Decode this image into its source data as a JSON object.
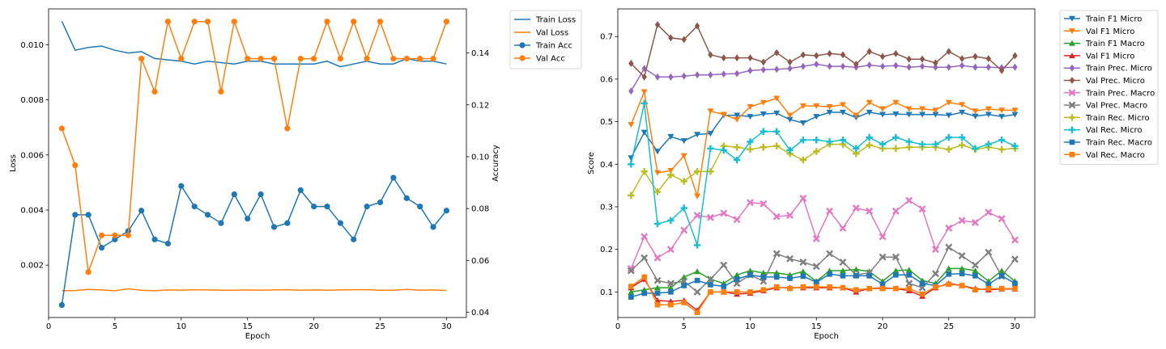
{
  "chart_data": [
    {
      "type": "line",
      "xlabel": "Epoch",
      "ylabel_left": "Loss",
      "ylabel_right": "Accuracy",
      "x": [
        1,
        2,
        3,
        4,
        5,
        6,
        7,
        8,
        9,
        10,
        11,
        12,
        13,
        14,
        15,
        16,
        17,
        18,
        19,
        20,
        21,
        22,
        23,
        24,
        25,
        26,
        27,
        28,
        29,
        30
      ],
      "xlim": [
        0,
        31.5
      ],
      "ylim_left": [
        0.0001,
        0.0113
      ],
      "ylim_right": [
        0.038,
        0.157
      ],
      "xticks": [
        "0",
        "5",
        "10",
        "15",
        "20",
        "25",
        "30"
      ],
      "yticks_left": [
        "0.002",
        "0.004",
        "0.006",
        "0.008",
        "0.010"
      ],
      "yticks_right": [
        "0.04",
        "0.06",
        "0.08",
        "0.10",
        "0.12",
        "0.14"
      ],
      "legend_position": "outside-top-right",
      "series": [
        {
          "name": "Train Loss",
          "axis": "left",
          "color": "#1f77b4",
          "marker": "none",
          "values": [
            0.01085,
            0.0098,
            0.0099,
            0.00995,
            0.0098,
            0.0097,
            0.00975,
            0.0095,
            0.00945,
            0.0094,
            0.0093,
            0.0094,
            0.00935,
            0.0093,
            0.0094,
            0.0094,
            0.0093,
            0.0093,
            0.0093,
            0.0093,
            0.0094,
            0.0092,
            0.0093,
            0.0094,
            0.0093,
            0.0093,
            0.0095,
            0.0094,
            0.0094,
            0.0093
          ]
        },
        {
          "name": "Val Loss",
          "axis": "left",
          "color": "#ff7f0e",
          "marker": "none",
          "values": [
            0.00107,
            0.00108,
            0.00112,
            0.0011,
            0.00107,
            0.00114,
            0.00109,
            0.00107,
            0.0011,
            0.00109,
            0.00111,
            0.0011,
            0.00109,
            0.00109,
            0.0011,
            0.00109,
            0.0011,
            0.00111,
            0.00109,
            0.0011,
            0.00109,
            0.0011,
            0.00111,
            0.00111,
            0.00109,
            0.00109,
            0.00112,
            0.00109,
            0.0011,
            0.00108
          ]
        },
        {
          "name": "Train Acc",
          "axis": "right",
          "color": "#1f77b4",
          "marker": "circle",
          "values": [
            0.0428,
            0.0776,
            0.0776,
            0.0649,
            0.0681,
            0.0713,
            0.0792,
            0.0681,
            0.0665,
            0.0887,
            0.0808,
            0.0776,
            0.0744,
            0.0855,
            0.0761,
            0.0855,
            0.0729,
            0.0744,
            0.0871,
            0.0808,
            0.0808,
            0.0744,
            0.0681,
            0.0808,
            0.0824,
            0.0919,
            0.084,
            0.0808,
            0.0729,
            0.0792
          ]
        },
        {
          "name": "Val Acc",
          "axis": "right",
          "color": "#ff7f0e",
          "marker": "circle",
          "values": [
            0.1109,
            0.0967,
            0.0555,
            0.0697,
            0.0697,
            0.0697,
            0.1378,
            0.1251,
            0.1521,
            0.1378,
            0.1521,
            0.1521,
            0.1251,
            0.1521,
            0.1378,
            0.1378,
            0.1378,
            0.1109,
            0.1378,
            0.1378,
            0.1521,
            0.1378,
            0.1521,
            0.1378,
            0.1521,
            0.1378,
            0.1378,
            0.1378,
            0.1378,
            0.1521
          ]
        }
      ]
    },
    {
      "type": "line",
      "xlabel": "Epoch",
      "ylabel": "Score",
      "x": [
        1,
        2,
        3,
        4,
        5,
        6,
        7,
        8,
        9,
        10,
        11,
        12,
        13,
        14,
        15,
        16,
        17,
        18,
        19,
        20,
        21,
        22,
        23,
        24,
        25,
        26,
        27,
        28,
        29,
        30
      ],
      "xlim": [
        0,
        31.5
      ],
      "ylim": [
        0.04,
        0.765
      ],
      "xticks": [
        "0",
        "5",
        "10",
        "15",
        "20",
        "25",
        "30"
      ],
      "yticks": [
        "0.1",
        "0.2",
        "0.3",
        "0.4",
        "0.5",
        "0.6",
        "0.7"
      ],
      "legend_position": "outside-top-right",
      "series": [
        {
          "name": "Train F1 Micro",
          "color": "#1f77b4",
          "marker": "tri-down",
          "values": [
            0.415,
            0.475,
            0.43,
            0.465,
            0.455,
            0.47,
            0.472,
            0.515,
            0.515,
            0.512,
            0.518,
            0.52,
            0.505,
            0.497,
            0.512,
            0.522,
            0.522,
            0.51,
            0.522,
            0.517,
            0.518,
            0.517,
            0.517,
            0.517,
            0.515,
            0.522,
            0.513,
            0.517,
            0.512,
            0.517
          ]
        },
        {
          "name": "Val F1 Micro",
          "color": "#ff7f0e",
          "marker": "tri-down",
          "values": [
            0.493,
            0.57,
            0.38,
            0.385,
            0.42,
            0.325,
            0.525,
            0.517,
            0.505,
            0.535,
            0.545,
            0.555,
            0.515,
            0.537,
            0.537,
            0.535,
            0.54,
            0.515,
            0.545,
            0.53,
            0.545,
            0.53,
            0.53,
            0.527,
            0.545,
            0.54,
            0.525,
            0.53,
            0.527,
            0.527
          ]
        },
        {
          "name": "Train F1 Macro",
          "color": "#2ca02c",
          "marker": "tri-up",
          "values": [
            0.1,
            0.105,
            0.11,
            0.11,
            0.135,
            0.148,
            0.13,
            0.12,
            0.14,
            0.15,
            0.145,
            0.145,
            0.14,
            0.148,
            0.125,
            0.15,
            0.15,
            0.153,
            0.148,
            0.125,
            0.15,
            0.152,
            0.127,
            0.12,
            0.155,
            0.155,
            0.15,
            0.125,
            0.15,
            0.125
          ]
        },
        {
          "name": "Val F1 Micro",
          "color": "#d62728",
          "marker": "tri-up",
          "values": [
            0.11,
            0.13,
            0.08,
            0.078,
            0.08,
            0.057,
            0.1,
            0.1,
            0.095,
            0.097,
            0.103,
            0.11,
            0.11,
            0.11,
            0.11,
            0.11,
            0.11,
            0.1,
            0.108,
            0.11,
            0.108,
            0.103,
            0.09,
            0.11,
            0.12,
            0.115,
            0.108,
            0.105,
            0.107,
            0.107
          ]
        },
        {
          "name": "Train Prec. Micro",
          "color": "#9467bd",
          "marker": "diamond",
          "values": [
            0.572,
            0.625,
            0.605,
            0.605,
            0.607,
            0.61,
            0.61,
            0.612,
            0.613,
            0.62,
            0.622,
            0.623,
            0.625,
            0.63,
            0.635,
            0.63,
            0.63,
            0.628,
            0.633,
            0.63,
            0.632,
            0.628,
            0.63,
            0.628,
            0.628,
            0.632,
            0.628,
            0.628,
            0.627,
            0.628
          ]
        },
        {
          "name": "Val Prec. Micro",
          "color": "#8c564b",
          "marker": "diamond",
          "values": [
            0.637,
            0.605,
            0.728,
            0.697,
            0.693,
            0.725,
            0.657,
            0.65,
            0.65,
            0.65,
            0.64,
            0.662,
            0.64,
            0.657,
            0.655,
            0.66,
            0.657,
            0.635,
            0.665,
            0.653,
            0.66,
            0.647,
            0.647,
            0.638,
            0.665,
            0.648,
            0.653,
            0.648,
            0.62,
            0.655
          ]
        },
        {
          "name": "Train Prec. Macro",
          "color": "#e377c2",
          "marker": "x",
          "values": [
            0.155,
            0.23,
            0.18,
            0.2,
            0.245,
            0.28,
            0.275,
            0.285,
            0.27,
            0.31,
            0.307,
            0.277,
            0.28,
            0.32,
            0.225,
            0.29,
            0.25,
            0.297,
            0.29,
            0.23,
            0.29,
            0.315,
            0.295,
            0.2,
            0.25,
            0.268,
            0.263,
            0.287,
            0.272,
            0.222
          ]
        },
        {
          "name": "Val Prec. Macro",
          "color": "#7f7f7f",
          "marker": "x",
          "values": [
            0.15,
            0.18,
            0.127,
            0.12,
            0.125,
            0.1,
            0.13,
            0.163,
            0.12,
            0.14,
            0.125,
            0.19,
            0.178,
            0.17,
            0.16,
            0.19,
            0.17,
            0.14,
            0.145,
            0.182,
            0.182,
            0.12,
            0.11,
            0.143,
            0.205,
            0.185,
            0.163,
            0.193,
            0.137,
            0.177
          ]
        },
        {
          "name": "Train Rec. Micro",
          "color": "#bcbd22",
          "marker": "plus",
          "values": [
            0.327,
            0.383,
            0.335,
            0.375,
            0.36,
            0.383,
            0.383,
            0.443,
            0.44,
            0.435,
            0.44,
            0.443,
            0.425,
            0.41,
            0.43,
            0.447,
            0.447,
            0.425,
            0.445,
            0.437,
            0.437,
            0.44,
            0.44,
            0.44,
            0.435,
            0.445,
            0.435,
            0.44,
            0.435,
            0.437
          ]
        },
        {
          "name": "Val Rec. Micro",
          "color": "#17becf",
          "marker": "plus",
          "values": [
            0.4,
            0.543,
            0.26,
            0.268,
            0.297,
            0.21,
            0.437,
            0.433,
            0.41,
            0.453,
            0.477,
            0.477,
            0.433,
            0.457,
            0.457,
            0.453,
            0.457,
            0.437,
            0.463,
            0.447,
            0.463,
            0.453,
            0.447,
            0.447,
            0.463,
            0.463,
            0.437,
            0.447,
            0.457,
            0.443
          ]
        },
        {
          "name": "Train Rec. Macro",
          "color": "#1f77b4",
          "marker": "square",
          "values": [
            0.088,
            0.097,
            0.097,
            0.1,
            0.115,
            0.127,
            0.117,
            0.113,
            0.13,
            0.14,
            0.135,
            0.135,
            0.132,
            0.137,
            0.123,
            0.142,
            0.138,
            0.138,
            0.138,
            0.118,
            0.14,
            0.14,
            0.12,
            0.115,
            0.142,
            0.143,
            0.138,
            0.118,
            0.138,
            0.12
          ]
        },
        {
          "name": "Val Rec. Macro",
          "color": "#ff7f0e",
          "marker": "square",
          "values": [
            0.113,
            0.135,
            0.07,
            0.07,
            0.075,
            0.052,
            0.1,
            0.1,
            0.1,
            0.1,
            0.105,
            0.112,
            0.108,
            0.112,
            0.112,
            0.112,
            0.11,
            0.105,
            0.108,
            0.108,
            0.108,
            0.108,
            0.095,
            0.112,
            0.118,
            0.115,
            0.105,
            0.108,
            0.108,
            0.108
          ]
        }
      ]
    }
  ]
}
